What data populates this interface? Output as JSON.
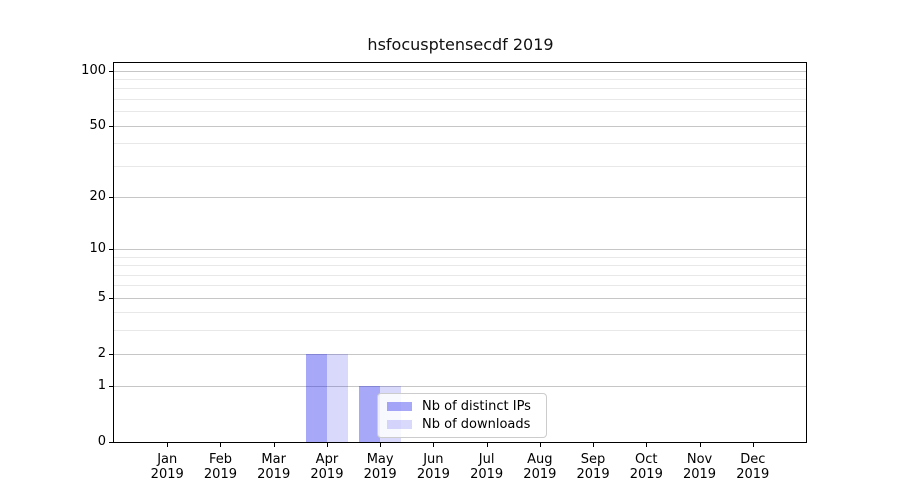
{
  "chart_data": {
    "type": "bar",
    "title": "hsfocusptensecdf 2019",
    "categories": [
      "Jan 2019",
      "Feb 2019",
      "Mar 2019",
      "Apr 2019",
      "May 2019",
      "Jun 2019",
      "Jul 2019",
      "Aug 2019",
      "Sep 2019",
      "Oct 2019",
      "Nov 2019",
      "Dec 2019"
    ],
    "series": [
      {
        "name": "Nb of distinct IPs",
        "values": [
          0,
          0,
          0,
          2,
          1,
          0,
          0,
          0,
          0,
          0,
          0,
          0
        ]
      },
      {
        "name": "Nb of downloads",
        "values": [
          0,
          0,
          0,
          2,
          1,
          0,
          0,
          0,
          0,
          0,
          0,
          0
        ]
      }
    ],
    "xlabel": "",
    "ylabel": "",
    "yscale": "log1p",
    "ylim": [
      0,
      110
    ],
    "yticks": [
      0,
      1,
      2,
      5,
      10,
      20,
      50,
      100
    ],
    "yticks_minor": [
      3,
      4,
      6,
      7,
      8,
      9,
      30,
      40,
      60,
      70,
      80,
      90
    ],
    "grid": "both",
    "legend_position": "lower center, inside axes over May-Jul"
  },
  "colors": {
    "series_distinct_ips": "rgba(20,20,235,0.37)",
    "series_downloads": "rgba(20,20,235,0.16)",
    "grid_major": "#c6c6c6",
    "grid_minor": "#e8e8e8",
    "spine": "#000000",
    "legend_bg": "rgba(255,255,255,0.8)",
    "legend_border": "#cccccc",
    "text": "#000000"
  }
}
